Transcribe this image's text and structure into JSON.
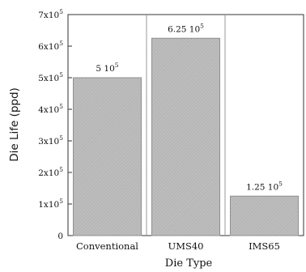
{
  "chart_data": {
    "type": "bar",
    "xlabel": "Die Type",
    "ylabel": "Die Life (ppd)",
    "categories": [
      "Conventional",
      "UMS40",
      "IMS65"
    ],
    "values": [
      500000,
      625000,
      125000
    ],
    "data_labels": [
      {
        "base": "5 10",
        "exp": "5"
      },
      {
        "base": "6.25 10",
        "exp": "5"
      },
      {
        "base": "1.25 10",
        "exp": "5"
      }
    ],
    "ylim": [
      0,
      700000
    ],
    "yticks": [
      {
        "value": 0,
        "base": "0",
        "exp": ""
      },
      {
        "value": 100000,
        "base": "1x10",
        "exp": "5"
      },
      {
        "value": 200000,
        "base": "2x10",
        "exp": "5"
      },
      {
        "value": 300000,
        "base": "3x10",
        "exp": "5"
      },
      {
        "value": 400000,
        "base": "4x10",
        "exp": "5"
      },
      {
        "value": 500000,
        "base": "5x10",
        "exp": "5"
      },
      {
        "value": 600000,
        "base": "6x10",
        "exp": "5"
      },
      {
        "value": 700000,
        "base": "7x10",
        "exp": "5"
      }
    ],
    "grid": false,
    "legend": "none",
    "colors": {
      "bar_fill": "#b9b9b9",
      "bar_edge": "#8f8f8f",
      "axis": "#333333",
      "separator": "#999999"
    }
  }
}
